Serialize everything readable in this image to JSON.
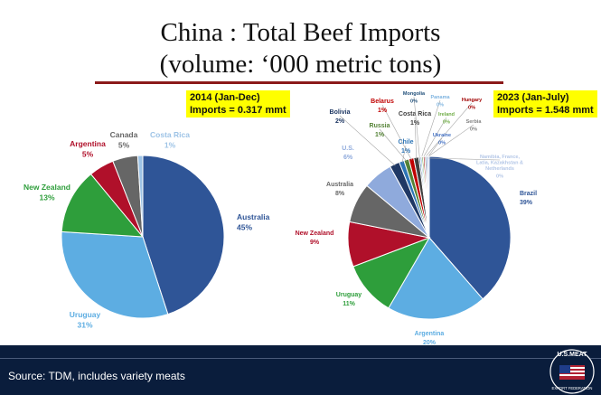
{
  "title_line1": "China : Total Beef Imports",
  "title_line2": "(volume: ‘000 metric tons)",
  "footer": {
    "source": "Source: TDM, includes variety meats"
  },
  "logo": {
    "text_top": "U.S.MEAT",
    "text_bottom": "EXPORT FEDERATION"
  },
  "chart_data": [
    {
      "type": "pie",
      "note_line1": "2014 (Jan-Dec)",
      "note_line2": "Imports = 0.317 mmt",
      "slices": [
        {
          "label": "Australia",
          "pct": "45%",
          "value": 45,
          "color": "#2f5597"
        },
        {
          "label": "Uruguay",
          "pct": "31%",
          "value": 31,
          "color": "#5dade2"
        },
        {
          "label": "New Zealand",
          "pct": "13%",
          "value": 13,
          "color": "#2e9e3b"
        },
        {
          "label": "Argentina",
          "pct": "5%",
          "value": 5,
          "color": "#b0102a"
        },
        {
          "label": "Canada",
          "pct": "5%",
          "value": 5,
          "color": "#666666"
        },
        {
          "label": "Costa Rica",
          "pct": "1%",
          "value": 1,
          "color": "#9dc3e6"
        }
      ]
    },
    {
      "type": "pie",
      "note_line1": "2023 (Jan-July)",
      "note_line2": "Imports = 1.548 mmt",
      "slices": [
        {
          "label": "Brazil",
          "pct": "39%",
          "value": 39,
          "color": "#2f5597"
        },
        {
          "label": "Argentina",
          "pct": "20%",
          "value": 20,
          "color": "#5dade2"
        },
        {
          "label": "Uruguay",
          "pct": "11%",
          "value": 11,
          "color": "#2e9e3b"
        },
        {
          "label": "New Zealand",
          "pct": "9%",
          "value": 9,
          "color": "#b0102a"
        },
        {
          "label": "Australia",
          "pct": "8%",
          "value": 8,
          "color": "#666666"
        },
        {
          "label": "U.S.",
          "pct": "6%",
          "value": 6,
          "color": "#8faadc"
        },
        {
          "label": "Bolivia",
          "pct": "2%",
          "value": 2,
          "color": "#1f3864"
        },
        {
          "label": "Chile",
          "pct": "1%",
          "value": 1,
          "color": "#2e75b6"
        },
        {
          "label": "Russia",
          "pct": "1%",
          "value": 1,
          "color": "#548235"
        },
        {
          "label": "Belarus",
          "pct": "1%",
          "value": 1,
          "color": "#c00000"
        },
        {
          "label": "Costa Rica",
          "pct": "1%",
          "value": 1,
          "color": "#404040"
        },
        {
          "label": "Mongolia",
          "pct": "0%",
          "value": 0.3,
          "color": "#1f4e79"
        },
        {
          "label": "Panama",
          "pct": "0%",
          "value": 0.3,
          "color": "#7fb4e0"
        },
        {
          "label": "Ireland",
          "pct": "0%",
          "value": 0.3,
          "color": "#70ad47"
        },
        {
          "label": "Hungary",
          "pct": "0%",
          "value": 0.3,
          "color": "#a00000"
        },
        {
          "label": "Serbia",
          "pct": "0%",
          "value": 0.3,
          "color": "#808080"
        },
        {
          "label": "Ukraine",
          "pct": "0%",
          "value": 0.3,
          "color": "#4472c4"
        },
        {
          "label": "Namibia, France, Latia, Kazakhstan & Netherlands",
          "pct": "0%",
          "value": 0.3,
          "color": "#b4c7e7"
        }
      ]
    }
  ]
}
